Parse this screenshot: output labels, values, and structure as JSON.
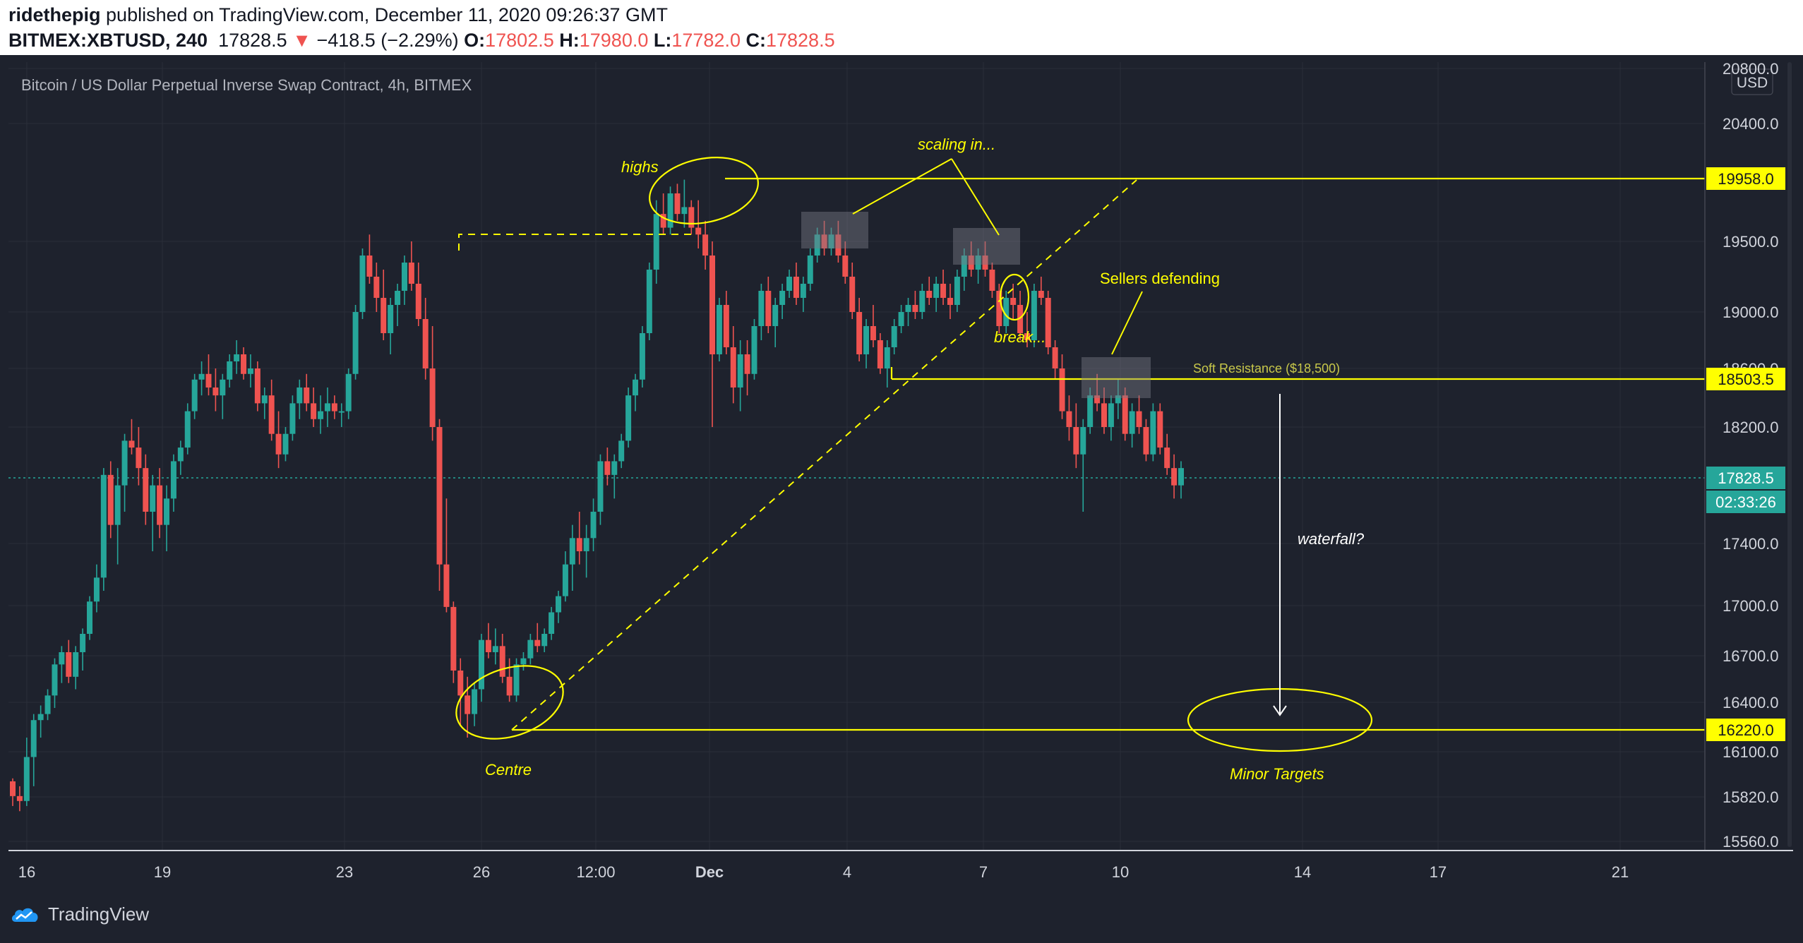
{
  "header": {
    "author": "ridethepig",
    "published_text": "published on TradingView.com, December 11, 2020 09:26:37 GMT",
    "symbol": "BITMEX:XBTUSD, 240",
    "last": "17828.5",
    "change": "−418.5 (−2.29%)",
    "o_label": "O:",
    "o": "17802.5",
    "h_label": "H:",
    "h": "17980.0",
    "l_label": "L:",
    "l": "17782.0",
    "c_label": "C:",
    "c": "17828.5"
  },
  "footer": {
    "brand": "TradingView"
  },
  "colors": {
    "background": "#1e222d",
    "up": "#26a69a",
    "down": "#ef5350",
    "annotation": "#ffff00",
    "text": "#d1d4dc",
    "grid": "#2a2e39",
    "price_badge": "#26a69a"
  },
  "chart_data": {
    "type": "candlestick",
    "title": "Bitcoin / US Dollar Perpetual Inverse Swap Contract, 4h, BITMEX",
    "currency": "USD",
    "x_ticks": [
      "16",
      "19",
      "23",
      "26",
      "12:00",
      "Dec",
      "4",
      "7",
      "10",
      "14",
      "17",
      "21"
    ],
    "y_ticks": [
      20800.0,
      20400.0,
      19500.0,
      19000.0,
      18600.0,
      18200.0,
      17400.0,
      17000.0,
      16700.0,
      16400.0,
      16100.0,
      15820.0,
      15560.0
    ],
    "y_range": [
      15560,
      20800
    ],
    "price_labels": [
      {
        "label": "19958.0",
        "value": 19958.0
      },
      {
        "label": "18503.5",
        "value": 18503.5
      },
      {
        "label": "17828.5",
        "value": 17828.5,
        "current": true
      },
      {
        "label": "16220.0",
        "value": 16220.0
      }
    ],
    "countdown": "02:33:26",
    "levels": [
      {
        "name": "highs",
        "value": 19958
      },
      {
        "name": "soft-resistance",
        "value": 18503.5
      },
      {
        "name": "minor-targets",
        "value": 16220
      }
    ],
    "annotations": {
      "highs": "highs",
      "scaling": "scaling in...",
      "sellers": "Sellers defending",
      "break": "break...",
      "soft_resistance": "Soft Resistance ($18,500)",
      "waterfall": "waterfall?",
      "centre": "Centre",
      "minor_targets": "Minor Targets"
    },
    "candles": [
      [
        16050,
        16080,
        15800,
        15900
      ],
      [
        15900,
        16000,
        15750,
        15850
      ],
      [
        15850,
        16200,
        15800,
        16150
      ],
      [
        16150,
        16350,
        16000,
        16300
      ],
      [
        16300,
        16420,
        16200,
        16350
      ],
      [
        16350,
        16550,
        16300,
        16500
      ],
      [
        16500,
        16800,
        16400,
        16750
      ],
      [
        16750,
        16900,
        16600,
        16850
      ],
      [
        16850,
        16950,
        16600,
        16650
      ],
      [
        16650,
        16900,
        16550,
        16850
      ],
      [
        16850,
        17050,
        16700,
        17000
      ],
      [
        17000,
        17350,
        16950,
        17300
      ],
      [
        17300,
        17500,
        17200,
        17450
      ],
      [
        17450,
        17900,
        17400,
        17850
      ],
      [
        17850,
        17950,
        17600,
        17650
      ],
      [
        17650,
        17900,
        17500,
        17800
      ],
      [
        17800,
        18150,
        17700,
        18100
      ],
      [
        18100,
        18250,
        18000,
        18050
      ],
      [
        18050,
        18200,
        17800,
        17900
      ],
      [
        17900,
        18000,
        17650,
        17700
      ],
      [
        17700,
        17850,
        17550,
        17800
      ],
      [
        17800,
        17900,
        17600,
        17650
      ],
      [
        17650,
        17800,
        17550,
        17750
      ],
      [
        17750,
        18000,
        17700,
        17950
      ],
      [
        17950,
        18100,
        17850,
        18050
      ],
      [
        18050,
        18350,
        18000,
        18300
      ],
      [
        18300,
        18550,
        18250,
        18500
      ],
      [
        18500,
        18650,
        18400,
        18550
      ],
      [
        18550,
        18700,
        18400,
        18450
      ],
      [
        18450,
        18600,
        18300,
        18400
      ],
      [
        18400,
        18550,
        18250,
        18500
      ],
      [
        18500,
        18700,
        18450,
        18650
      ],
      [
        18650,
        18800,
        18550,
        18700
      ],
      [
        18700,
        18750,
        18500,
        18550
      ],
      [
        18550,
        18700,
        18450,
        18600
      ],
      [
        18600,
        18650,
        18300,
        18350
      ],
      [
        18350,
        18450,
        18250,
        18400
      ],
      [
        18400,
        18500,
        18100,
        18150
      ],
      [
        18150,
        18300,
        17900,
        18000
      ],
      [
        18000,
        18200,
        17950,
        18150
      ],
      [
        18150,
        18400,
        18100,
        18350
      ],
      [
        18350,
        18500,
        18250,
        18450
      ],
      [
        18450,
        18550,
        18300,
        18350
      ],
      [
        18350,
        18450,
        18200,
        18250
      ],
      [
        18250,
        18400,
        18150,
        18300
      ],
      [
        18300,
        18450,
        18200,
        18350
      ],
      [
        18350,
        18400,
        18250,
        18300
      ],
      [
        18300,
        18350,
        18200,
        18300
      ],
      [
        18300,
        18600,
        18250,
        18550
      ],
      [
        18550,
        19050,
        18500,
        19000
      ],
      [
        19000,
        19450,
        18950,
        19400
      ],
      [
        19400,
        19550,
        19200,
        19250
      ],
      [
        19250,
        19350,
        19000,
        19100
      ],
      [
        19100,
        19300,
        18800,
        18850
      ],
      [
        18850,
        19100,
        18700,
        19050
      ],
      [
        19050,
        19200,
        18900,
        19150
      ],
      [
        19150,
        19400,
        19050,
        19350
      ],
      [
        19350,
        19500,
        19150,
        19200
      ],
      [
        19200,
        19350,
        18900,
        18950
      ],
      [
        18950,
        19100,
        18500,
        18600
      ],
      [
        18600,
        18900,
        18100,
        18200
      ],
      [
        18200,
        18250,
        17400,
        17500
      ],
      [
        17500,
        17750,
        17200,
        17250
      ],
      [
        17250,
        17300,
        16600,
        16700
      ],
      [
        16700,
        16800,
        16250,
        16500
      ],
      [
        16500,
        16650,
        16200,
        16350
      ],
      [
        16350,
        16600,
        16250,
        16550
      ],
      [
        16550,
        17000,
        16450,
        16950
      ],
      [
        16950,
        17100,
        16800,
        16850
      ],
      [
        16850,
        17050,
        16750,
        16900
      ],
      [
        16900,
        17000,
        16600,
        16650
      ],
      [
        16650,
        16800,
        16450,
        16500
      ],
      [
        16500,
        16800,
        16450,
        16750
      ],
      [
        16750,
        16850,
        16700,
        16800
      ],
      [
        16800,
        17000,
        16750,
        16950
      ],
      [
        16950,
        17100,
        16850,
        16900
      ],
      [
        16900,
        17050,
        16850,
        17000
      ],
      [
        17000,
        17250,
        16950,
        17200
      ],
      [
        17200,
        17400,
        17100,
        17350
      ],
      [
        17350,
        17550,
        17300,
        17500
      ],
      [
        17500,
        17650,
        17400,
        17600
      ],
      [
        17600,
        17700,
        17500,
        17550
      ],
      [
        17550,
        17650,
        17450,
        17600
      ],
      [
        17600,
        17750,
        17550,
        17700
      ],
      [
        17700,
        18000,
        17650,
        17950
      ],
      [
        17950,
        18050,
        17800,
        17850
      ],
      [
        17850,
        18000,
        17750,
        17950
      ],
      [
        17950,
        18150,
        17900,
        18100
      ],
      [
        18100,
        18450,
        18050,
        18400
      ],
      [
        18400,
        18550,
        18300,
        18500
      ],
      [
        18500,
        18900,
        18450,
        18850
      ],
      [
        18850,
        19350,
        18800,
        19300
      ],
      [
        19300,
        19800,
        19200,
        19700
      ],
      [
        19700,
        19850,
        19550,
        19600
      ],
      [
        19600,
        19900,
        19550,
        19850
      ],
      [
        19850,
        19920,
        19650,
        19700
      ],
      [
        19700,
        19950,
        19600,
        19750
      ],
      [
        19750,
        19800,
        19550,
        19600
      ],
      [
        19600,
        19800,
        19450,
        19550
      ],
      [
        19550,
        19650,
        19300,
        19400
      ],
      [
        19400,
        19500,
        18200,
        18700
      ],
      [
        18700,
        19100,
        18650,
        19050
      ],
      [
        19050,
        19150,
        18700,
        18750
      ],
      [
        18750,
        18900,
        18350,
        18450
      ],
      [
        18450,
        18800,
        18300,
        18700
      ],
      [
        18700,
        18800,
        18400,
        18550
      ],
      [
        18550,
        18950,
        18500,
        18900
      ],
      [
        18900,
        19200,
        18800,
        19150
      ],
      [
        19150,
        19250,
        18850,
        18900
      ],
      [
        18900,
        19100,
        18750,
        19050
      ],
      [
        19050,
        19200,
        18950,
        19150
      ],
      [
        19150,
        19300,
        19100,
        19250
      ],
      [
        19250,
        19350,
        19050,
        19100
      ],
      [
        19100,
        19250,
        19000,
        19200
      ],
      [
        19200,
        19450,
        19150,
        19400
      ],
      [
        19400,
        19600,
        19350,
        19550
      ],
      [
        19550,
        19650,
        19400,
        19450
      ],
      [
        19450,
        19600,
        19400,
        19550
      ],
      [
        19550,
        19650,
        19350,
        19400
      ],
      [
        19400,
        19500,
        19200,
        19250
      ],
      [
        19250,
        19350,
        18950,
        19000
      ],
      [
        19000,
        19100,
        18650,
        18700
      ],
      [
        18700,
        18950,
        18600,
        18900
      ],
      [
        18900,
        19050,
        18750,
        18800
      ],
      [
        18800,
        18850,
        18550,
        18600
      ],
      [
        18600,
        18800,
        18450,
        18750
      ],
      [
        18750,
        18950,
        18700,
        18900
      ],
      [
        18900,
        19050,
        18850,
        19000
      ],
      [
        19000,
        19100,
        18900,
        19050
      ],
      [
        19050,
        19150,
        18950,
        19000
      ],
      [
        19000,
        19200,
        18950,
        19150
      ],
      [
        19150,
        19250,
        19050,
        19100
      ],
      [
        19100,
        19250,
        19000,
        19200
      ],
      [
        19200,
        19300,
        19050,
        19100
      ],
      [
        19100,
        19200,
        18950,
        19050
      ],
      [
        19050,
        19300,
        19000,
        19250
      ],
      [
        19250,
        19450,
        19150,
        19400
      ],
      [
        19400,
        19500,
        19250,
        19300
      ],
      [
        19300,
        19450,
        19200,
        19400
      ],
      [
        19400,
        19500,
        19250,
        19300
      ],
      [
        19300,
        19350,
        19100,
        19150
      ],
      [
        19150,
        19200,
        18850,
        18900
      ],
      [
        18900,
        19150,
        18850,
        19100
      ],
      [
        19100,
        19200,
        18950,
        19050
      ],
      [
        19050,
        19150,
        18800,
        18850
      ],
      [
        18850,
        19000,
        18750,
        18800
      ],
      [
        18800,
        19200,
        18750,
        19150
      ],
      [
        19150,
        19250,
        19050,
        19100
      ],
      [
        19100,
        19150,
        18700,
        18750
      ],
      [
        18750,
        18800,
        18500,
        18600
      ],
      [
        18600,
        18700,
        18250,
        18300
      ],
      [
        18300,
        18400,
        18100,
        18200
      ],
      [
        18200,
        18350,
        17900,
        18000
      ],
      [
        18000,
        18250,
        17700,
        18200
      ],
      [
        18200,
        18450,
        18150,
        18400
      ],
      [
        18400,
        18550,
        18300,
        18350
      ],
      [
        18350,
        18450,
        18150,
        18200
      ],
      [
        18200,
        18400,
        18100,
        18350
      ],
      [
        18350,
        18500,
        18250,
        18400
      ],
      [
        18400,
        18450,
        18100,
        18150
      ],
      [
        18150,
        18350,
        18050,
        18300
      ],
      [
        18300,
        18400,
        18150,
        18200
      ],
      [
        18200,
        18250,
        17950,
        18000
      ],
      [
        18000,
        18350,
        17950,
        18300
      ],
      [
        18300,
        18350,
        18000,
        18050
      ],
      [
        18050,
        18150,
        17850,
        17900
      ],
      [
        17900,
        18000,
        17750,
        17800
      ],
      [
        17800,
        17950,
        17750,
        17900
      ]
    ]
  }
}
